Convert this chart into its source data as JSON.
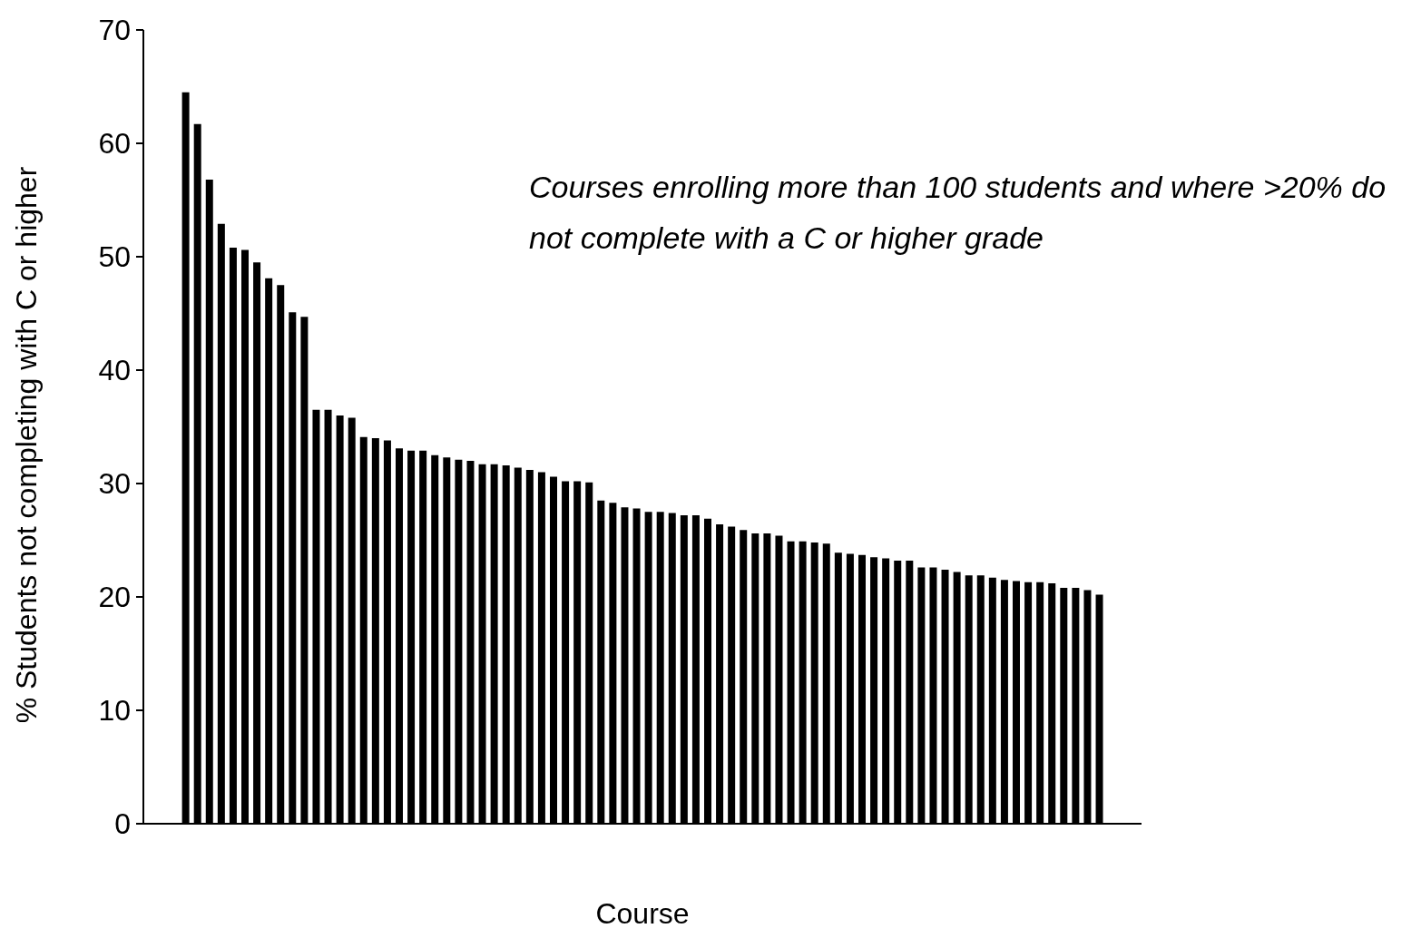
{
  "chart_data": {
    "type": "bar",
    "xlabel": "Course",
    "ylabel": "% Students not completing with C or higher",
    "annotations": [
      "Courses enrolling more than 100 students and where >20% do not complete with a C or higher grade"
    ],
    "categories": [
      null,
      null,
      null,
      null,
      null,
      null,
      null,
      null,
      null,
      null,
      null,
      null,
      null,
      null,
      null,
      null,
      null,
      null,
      null,
      null,
      null,
      null,
      null,
      null,
      null,
      null,
      null,
      null,
      null,
      null,
      null,
      null,
      null,
      null,
      null,
      null,
      null,
      null,
      null,
      null,
      null,
      null,
      null,
      null,
      null,
      null,
      null,
      null,
      null,
      null,
      null,
      null,
      null,
      null,
      null,
      null,
      null,
      null,
      null,
      null,
      null,
      null,
      null,
      null,
      null,
      null,
      null,
      null,
      null,
      null,
      null,
      null,
      null,
      null,
      null,
      null,
      null,
      null
    ],
    "values": [
      64.5,
      61.7,
      56.8,
      52.9,
      50.8,
      50.6,
      49.5,
      48.1,
      47.5,
      45.1,
      44.7,
      36.5,
      36.5,
      36.0,
      35.8,
      34.1,
      34.0,
      33.8,
      33.1,
      32.9,
      32.9,
      32.5,
      32.3,
      32.1,
      32.0,
      31.7,
      31.7,
      31.6,
      31.4,
      31.2,
      31.0,
      30.6,
      30.2,
      30.2,
      30.1,
      28.5,
      28.3,
      27.9,
      27.8,
      27.5,
      27.5,
      27.4,
      27.2,
      27.2,
      26.9,
      26.4,
      26.2,
      25.9,
      25.6,
      25.6,
      25.4,
      24.9,
      24.9,
      24.8,
      24.7,
      23.9,
      23.8,
      23.7,
      23.5,
      23.4,
      23.2,
      23.2,
      22.6,
      22.6,
      22.4,
      22.2,
      21.9,
      21.9,
      21.7,
      21.5,
      21.4,
      21.3,
      21.3,
      21.2,
      20.8,
      20.8,
      20.6,
      20.2
    ],
    "color": "#000000",
    "ylim": [
      0,
      70
    ],
    "yticks": [
      0,
      10,
      20,
      30,
      40,
      50,
      60,
      70
    ],
    "grid": false,
    "legend": false
  }
}
